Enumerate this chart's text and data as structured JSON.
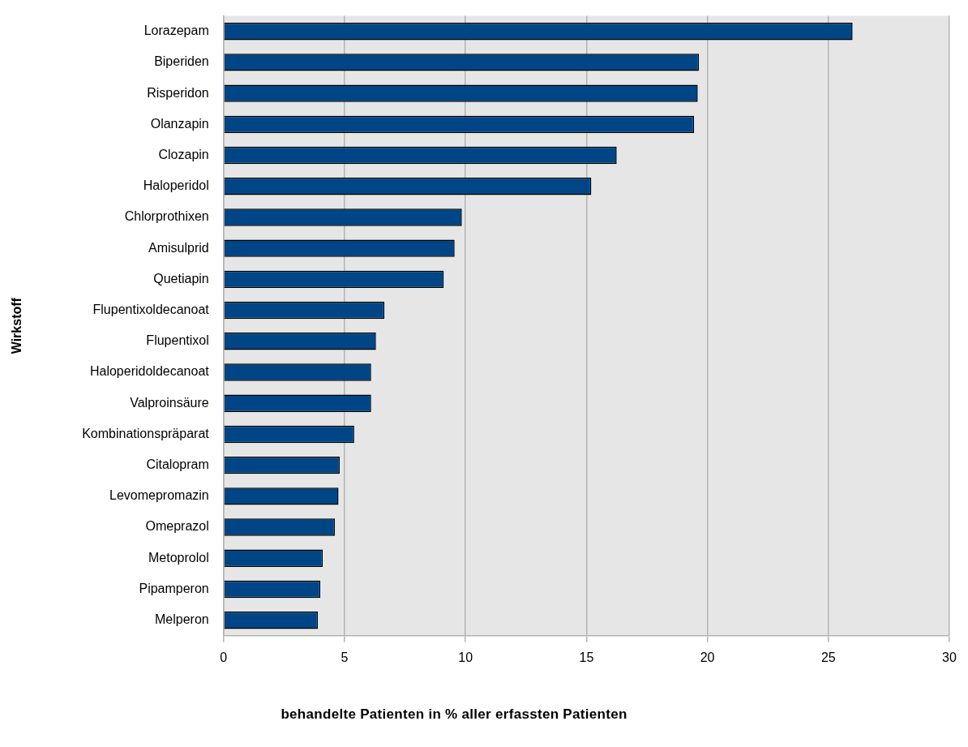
{
  "chart_data": {
    "type": "bar",
    "orientation": "horizontal",
    "ylabel": "Wirkstoff",
    "xlabel": "behandelte Patienten in % aller erfassten Patienten",
    "categories": [
      "Lorazepam",
      "Biperiden",
      "Risperidon",
      "Olanzapin",
      "Clozapin",
      "Haloperidol",
      "Chlorprothixen",
      "Amisulprid",
      "Quetiapin",
      "Flupentixoldecanoat",
      "Flupentixol",
      "Haloperidoldecanoat",
      "Valproinsäure",
      "Kombinationspräparat",
      "Citalopram",
      "Levomepromazin",
      "Omeprazol",
      "Metoprolol",
      "Pipamperon",
      "Melperon"
    ],
    "values": [
      26.0,
      19.65,
      19.6,
      19.45,
      16.25,
      15.2,
      9.85,
      9.55,
      9.1,
      6.65,
      6.3,
      6.1,
      6.1,
      5.4,
      4.8,
      4.75,
      4.6,
      4.1,
      4.0,
      3.9
    ],
    "color": "#004586",
    "xlim": [
      0,
      30
    ],
    "xticks": [
      0,
      5,
      10,
      15,
      20,
      25,
      30
    ],
    "grid": "x",
    "legend": false
  }
}
